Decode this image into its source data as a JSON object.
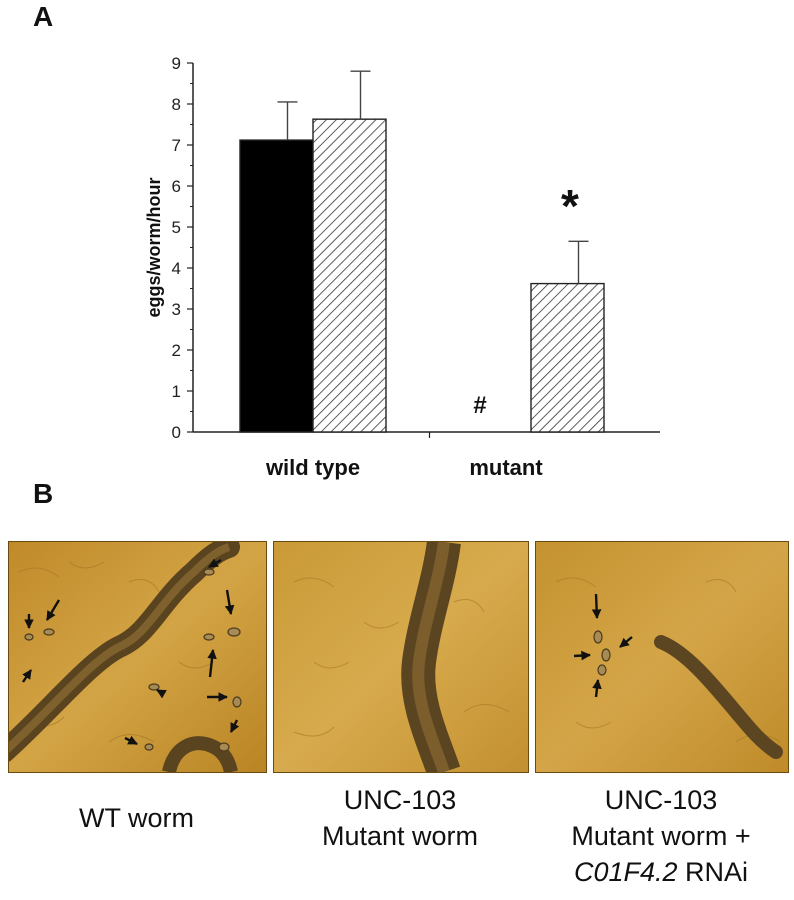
{
  "panel_a": {
    "letter": "A"
  },
  "panel_b": {
    "letter": "B"
  },
  "chart_data": {
    "type": "bar",
    "categories": [
      "wild type",
      "mutant"
    ],
    "ylabel": "eggs/worm/hour",
    "xlabel": "",
    "ylim": [
      0,
      9
    ],
    "yticks": [
      "0",
      "1",
      "2",
      "3",
      "4",
      "5",
      "6",
      "7",
      "8",
      "9"
    ],
    "series": [
      {
        "fill": "solid",
        "color": "#000000",
        "values": [
          7.12,
          0
        ],
        "errors": [
          0.93,
          0
        ]
      },
      {
        "fill": "hatched",
        "color": "#ffffff",
        "values": [
          7.63,
          3.62
        ],
        "errors": [
          1.17,
          1.03
        ]
      }
    ],
    "annotations": [
      {
        "text": "#",
        "category": "mutant",
        "series": 0
      },
      {
        "text": "*",
        "category": "mutant",
        "series": 1
      }
    ],
    "grid": false
  },
  "images": [
    {
      "caption_lines": [
        "WT worm"
      ]
    },
    {
      "caption_lines": [
        "UNC-103",
        "Mutant worm"
      ]
    },
    {
      "caption_lines": [
        "UNC-103",
        "Mutant worm +"
      ],
      "caption_italic": "C01F4.2",
      "caption_tail": " RNAi"
    }
  ],
  "colors": {
    "micro_bg": "#c8952f",
    "micro_dark": "#6a4e1e",
    "arrow": "#111111"
  }
}
